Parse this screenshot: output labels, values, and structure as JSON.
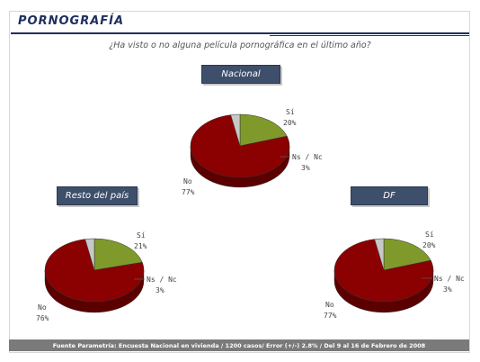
{
  "header": {
    "title": "PORNOGRAFÍA"
  },
  "question": "¿Ha visto o no alguna película pornográfica en el último año?",
  "footer": "Fuente Parametría: Encuesta Nacional en vivienda / 1200 casos/ Error (+/-) 2.8% / Del 9 al 16 de Febrero de 2008",
  "colors": {
    "si": "#7f9a2a",
    "no": "#8b0000",
    "nsnc": "#c8c8c8",
    "box": "#3e4f6b"
  },
  "chart_data": [
    {
      "type": "pie",
      "title": "Nacional",
      "categories": [
        "Sí",
        "No",
        "Ns / Nc"
      ],
      "values": [
        20,
        77,
        3
      ],
      "labels": {
        "si": "Sí",
        "si_v": "20%",
        "no": "No",
        "no_v": "77%",
        "ns": "Ns / Nc",
        "ns_v": "3%"
      }
    },
    {
      "type": "pie",
      "title": "Resto del país",
      "categories": [
        "Sí",
        "No",
        "Ns / Nc"
      ],
      "values": [
        21,
        76,
        3
      ],
      "labels": {
        "si": "Sí",
        "si_v": "21%",
        "no": "No",
        "no_v": "76%",
        "ns": "Ns / Nc",
        "ns_v": "3%"
      }
    },
    {
      "type": "pie",
      "title": "DF",
      "categories": [
        "Sí",
        "No",
        "Ns / Nc"
      ],
      "values": [
        20,
        77,
        3
      ],
      "labels": {
        "si": "Sí",
        "si_v": "20%",
        "no": "No",
        "no_v": "77%",
        "ns": "Ns / Nc",
        "ns_v": "3%"
      }
    }
  ]
}
